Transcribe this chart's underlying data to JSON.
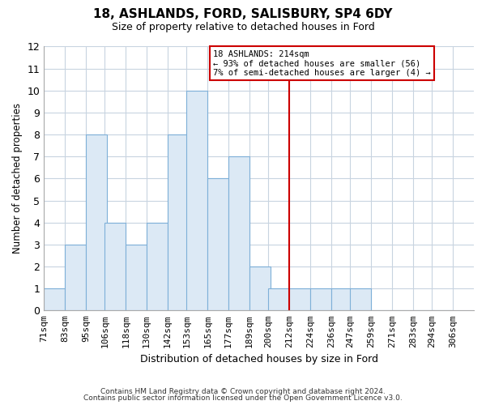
{
  "title": "18, ASHLANDS, FORD, SALISBURY, SP4 6DY",
  "subtitle": "Size of property relative to detached houses in Ford",
  "xlabel": "Distribution of detached houses by size in Ford",
  "ylabel": "Number of detached properties",
  "bar_edges": [
    71,
    83,
    95,
    106,
    118,
    130,
    142,
    153,
    165,
    177,
    189,
    200,
    212,
    224,
    236,
    247,
    259,
    271,
    283,
    294,
    306
  ],
  "bar_heights": [
    1,
    3,
    8,
    4,
    3,
    4,
    8,
    10,
    6,
    7,
    2,
    1,
    1,
    1,
    1,
    1,
    0,
    0,
    0,
    0
  ],
  "bar_color": "#dce9f5",
  "bar_edge_color": "#7eb0d8",
  "reference_line_x": 212,
  "reference_line_color": "#cc0000",
  "ylim": [
    0,
    12
  ],
  "yticks": [
    0,
    1,
    2,
    3,
    4,
    5,
    6,
    7,
    8,
    9,
    10,
    11,
    12
  ],
  "annotation_title": "18 ASHLANDS: 214sqm",
  "annotation_line1": "← 93% of detached houses are smaller (56)",
  "annotation_line2": "7% of semi-detached houses are larger (4) →",
  "annotation_box_color": "#ffffff",
  "annotation_border_color": "#cc0000",
  "footer_line1": "Contains HM Land Registry data © Crown copyright and database right 2024.",
  "footer_line2": "Contains public sector information licensed under the Open Government Licence v3.0.",
  "background_color": "#ffffff",
  "grid_color": "#c8d4e0",
  "x_tick_labels": [
    "71sqm",
    "83sqm",
    "95sqm",
    "106sqm",
    "118sqm",
    "130sqm",
    "142sqm",
    "153sqm",
    "165sqm",
    "177sqm",
    "189sqm",
    "200sqm",
    "212sqm",
    "224sqm",
    "236sqm",
    "247sqm",
    "259sqm",
    "271sqm",
    "283sqm",
    "294sqm",
    "306sqm"
  ]
}
